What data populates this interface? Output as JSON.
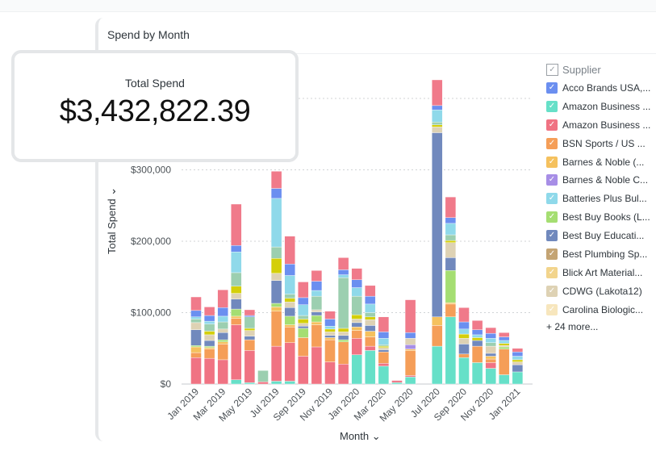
{
  "card": {
    "title": "Spend by Month"
  },
  "kpi": {
    "label": "Total Spend",
    "value": "$3,432,822.39"
  },
  "legend": {
    "header": "Supplier",
    "items": [
      {
        "label": "Acco Brands USA,...",
        "color": "#6b8ff0"
      },
      {
        "label": "Amazon Business ...",
        "color": "#66e0c8"
      },
      {
        "label": "Amazon Business ...",
        "color": "#f07383"
      },
      {
        "label": "BSN Sports / US ...",
        "color": "#f59e58"
      },
      {
        "label": "Barnes & Noble (...",
        "color": "#f5c15e"
      },
      {
        "label": "Barnes & Noble C...",
        "color": "#a78ee6"
      },
      {
        "label": "Batteries Plus Bul...",
        "color": "#8fd9ea"
      },
      {
        "label": "Best Buy Books (L...",
        "color": "#a5de72"
      },
      {
        "label": "Best Buy Educati...",
        "color": "#7189bd"
      },
      {
        "label": "Best Plumbing Sp...",
        "color": "#c4a474"
      },
      {
        "label": "Blick Art Material...",
        "color": "#f2d48c"
      },
      {
        "label": "CDWG (Lakota12)",
        "color": "#ded2b4"
      },
      {
        "label": "Carolina Biologic...",
        "color": "#f7e6bd"
      }
    ],
    "more": "+ 24 more..."
  },
  "chart_data": {
    "type": "bar",
    "stacked": true,
    "title": "Spend by Month",
    "xlabel": "Month",
    "ylabel": "Total Spend",
    "ylim": [
      0,
      430000
    ],
    "yticks": [
      "$0",
      "$100,000",
      "$200,000",
      "$300,000"
    ],
    "ytick_values": [
      0,
      100000,
      200000,
      300000,
      400000
    ],
    "grid": true,
    "legend_position": "right",
    "categories": [
      "Jan 2019",
      "Feb 2019",
      "Mar 2019",
      "Apr 2019",
      "May 2019",
      "Jun 2019",
      "Jul 2019",
      "Aug 2019",
      "Sep 2019",
      "Oct 2019",
      "Nov 2019",
      "Dec 2019",
      "Jan 2020",
      "Feb 2020",
      "Mar 2020",
      "Apr 2020",
      "May 2020",
      "Jun 2020",
      "Jul 2020",
      "Aug 2020",
      "Sep 2020",
      "Oct 2020",
      "Nov 2020",
      "Dec 2020",
      "Jan 2021"
    ],
    "xtick_labels": [
      "Jan 2019",
      "",
      "Mar 2019",
      "",
      "May 2019",
      "",
      "Jul 2019",
      "",
      "Sep 2019",
      "",
      "Nov 2019",
      "",
      "Jan 2020",
      "",
      "Mar 2020",
      "",
      "May 2020",
      "",
      "Jul 2020",
      "",
      "Sep 2020",
      "",
      "Nov 2020",
      "",
      "Jan 2021"
    ],
    "series": [
      {
        "name": "Amazon Business ...",
        "color": "#66e0c8",
        "values": [
          0,
          0,
          0,
          6000,
          2000,
          0,
          4000,
          4000,
          0,
          0,
          0,
          0,
          41000,
          47000,
          25000,
          2000,
          10000,
          0,
          53000,
          94000,
          37000,
          30000,
          22000,
          13000,
          17000
        ]
      },
      {
        "name": "Amazon Business ...",
        "color": "#f07383",
        "values": [
          37000,
          36000,
          34000,
          77000,
          45000,
          3000,
          49000,
          54000,
          39000,
          52000,
          31000,
          28000,
          23000,
          6000,
          4000,
          0,
          2000,
          0,
          0,
          0,
          0,
          0,
          8000,
          0,
          0
        ]
      },
      {
        "name": "BSN Sports / US ...",
        "color": "#f59e58",
        "values": [
          7000,
          13000,
          22000,
          9000,
          15000,
          0,
          49000,
          22000,
          26000,
          31000,
          31000,
          31000,
          11000,
          13000,
          16000,
          0,
          35000,
          0,
          29000,
          18000,
          5000,
          23000,
          5000,
          36000,
          0
        ]
      },
      {
        "name": "Barnes & Noble (...",
        "color": "#f5c15e",
        "values": [
          8000,
          2000,
          3000,
          3000,
          0,
          0,
          6000,
          3000,
          0,
          4000,
          3000,
          0,
          5000,
          8000,
          0,
          0,
          2000,
          0,
          12000,
          2000,
          0,
          0,
          4000,
          0,
          0
        ]
      },
      {
        "name": "Best Buy Books (L...",
        "color": "#a5de72",
        "values": [
          2000,
          2000,
          3000,
          10000,
          0,
          0,
          5000,
          12000,
          13000,
          9000,
          0,
          3000,
          0,
          0,
          0,
          0,
          0,
          0,
          0,
          45000,
          0,
          0,
          0,
          3000,
          0
        ]
      },
      {
        "name": "Barnes & Noble C...",
        "color": "#a78ee6",
        "values": [
          0,
          0,
          0,
          0,
          0,
          0,
          0,
          0,
          0,
          0,
          0,
          0,
          0,
          0,
          0,
          0,
          6000,
          0,
          0,
          0,
          0,
          0,
          0,
          0,
          0
        ]
      },
      {
        "name": "Best Buy Educati...",
        "color": "#7189bd",
        "values": [
          22000,
          8000,
          10000,
          14000,
          5000,
          0,
          32000,
          12000,
          3000,
          5000,
          3000,
          6000,
          6000,
          8000,
          3000,
          0,
          0,
          0,
          258000,
          18000,
          14000,
          8000,
          4000,
          0,
          10000
        ]
      },
      {
        "name": "CDWG (Lakota12)",
        "color": "#ded2b4",
        "values": [
          10000,
          8000,
          5000,
          8000,
          8000,
          0,
          10000,
          8000,
          4000,
          3000,
          5000,
          5000,
          5000,
          8000,
          3000,
          0,
          9000,
          0,
          8000,
          21000,
          8000,
          0,
          10000,
          2000,
          4000
        ]
      },
      {
        "color": "#d4cf0a",
        "values": [
          0,
          5000,
          0,
          10000,
          3000,
          0,
          21000,
          5000,
          6000,
          0,
          4000,
          5000,
          6000,
          4000,
          2000,
          0,
          0,
          0,
          3000,
          3000,
          6000,
          4000,
          0,
          3000,
          3000
        ]
      },
      {
        "color": "#9ccfb0",
        "values": [
          5000,
          10000,
          10000,
          19000,
          16000,
          16000,
          16000,
          6000,
          5000,
          19000,
          0,
          71000,
          26000,
          6000,
          2000,
          0,
          0,
          0,
          4000,
          8000,
          0,
          0,
          5000,
          0,
          0
        ]
      },
      {
        "name": "Batteries Plus Bul...",
        "color": "#8fd9ea",
        "values": [
          3000,
          4000,
          8000,
          29000,
          0,
          0,
          68000,
          26000,
          15000,
          8000,
          4000,
          4000,
          12000,
          12000,
          9000,
          0,
          0,
          0,
          17000,
          16000,
          7000,
          4000,
          6000,
          4000,
          5000
        ]
      },
      {
        "name": "Acco Brands USA,...",
        "color": "#6b8ff0",
        "values": [
          9000,
          8000,
          12000,
          9000,
          2000,
          0,
          14000,
          16000,
          10000,
          13000,
          10000,
          7000,
          11000,
          11000,
          9000,
          0,
          8000,
          0,
          6000,
          8000,
          10000,
          7000,
          7000,
          5000,
          6000
        ]
      },
      {
        "color": "#f07a8a",
        "values": [
          19000,
          12000,
          25000,
          58000,
          8000,
          0,
          24000,
          39000,
          22000,
          15000,
          11000,
          17000,
          16000,
          15000,
          21000,
          3000,
          46000,
          0,
          36000,
          29000,
          20000,
          13000,
          8000,
          6000,
          5000
        ]
      }
    ]
  }
}
